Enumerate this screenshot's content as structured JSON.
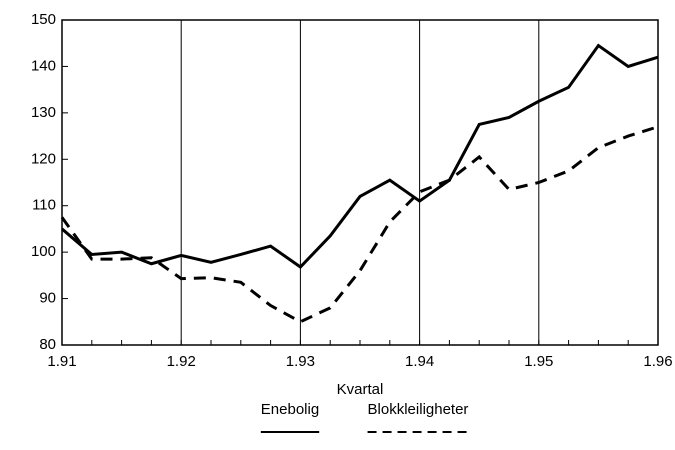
{
  "chart_data": {
    "type": "line",
    "x_label": "Kvartal",
    "categories": [
      "1.91",
      null,
      null,
      null,
      "1.92",
      null,
      null,
      null,
      "1.93",
      null,
      null,
      null,
      "1.94",
      null,
      null,
      null,
      "1.95",
      null,
      null,
      null,
      "1.96"
    ],
    "series": [
      {
        "name": "Enebolig",
        "color": "#000000",
        "style": "solid",
        "values": [
          105,
          99.5,
          100,
          97.5,
          99.3,
          97.8,
          99.5,
          101.3,
          96.8,
          103.5,
          112,
          115.5,
          111,
          115.5,
          127.5,
          129,
          132.5,
          135.5,
          144.5,
          140,
          142
        ]
      },
      {
        "name": "Blokkleiligheter",
        "color": "#000000",
        "style": "dashed",
        "values": [
          107.5,
          98.5,
          98.5,
          98.8,
          94.3,
          94.5,
          93.5,
          88.5,
          85,
          88,
          96,
          106.5,
          113,
          115.5,
          120.5,
          113.5,
          115,
          117.5,
          122.5,
          125,
          127
        ]
      }
    ],
    "ylim": [
      80,
      150
    ],
    "yticks": [
      80,
      90,
      100,
      110,
      120,
      130,
      140,
      150
    ],
    "grid": "x",
    "legend": "bottom"
  }
}
